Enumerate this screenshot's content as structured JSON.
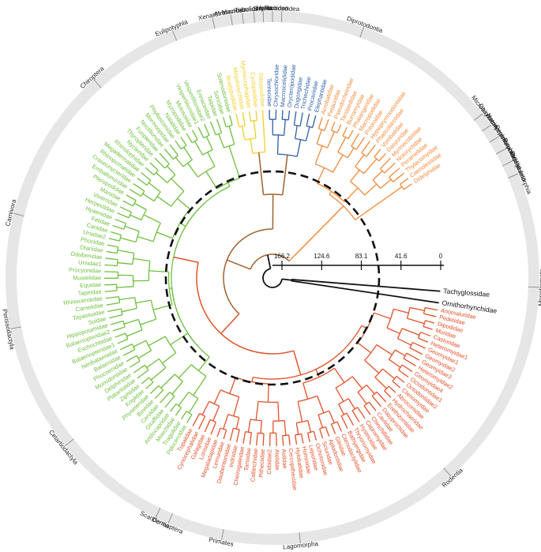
{
  "colors": {
    "ring": "#e6e6e6",
    "green": "#6fbf3f",
    "yellow": "#f2cf2b",
    "blue": "#2f5fa8",
    "orange": "#f08a3a",
    "red": "#e2522a",
    "brown": "#a0622d",
    "dark": "#111111"
  },
  "timescale": {
    "ticks": [
      "166.2",
      "124.6",
      "83.1",
      "41.6",
      "0"
    ]
  },
  "outgroup": [
    "Tachyglossidae",
    "Ornithorhynchidae"
  ],
  "orders": [
    {
      "name": "Monotremata",
      "angle": 2
    },
    {
      "name": "Rodentia",
      "angle": 48
    },
    {
      "name": "Lagomorpha",
      "angle": 84
    },
    {
      "name": "Primates",
      "angle": 101
    },
    {
      "name": "Dermoptera",
      "angle": 113
    },
    {
      "name": "Scandentia",
      "angle": 116
    },
    {
      "name": "Cetartiodactyla",
      "angle": 141
    },
    {
      "name": "Perissodactyla",
      "angle": 169
    },
    {
      "name": "Carnivora",
      "angle": 194
    },
    {
      "name": "Chiroptera",
      "angle": 228
    },
    {
      "name": "Eulipotyphla",
      "angle": 248
    },
    {
      "name": "Xenarthra",
      "angle": 257
    },
    {
      "name": "Afrosoricida",
      "angle": 261
    },
    {
      "name": "Macroscelidea",
      "angle": 263.5
    },
    {
      "name": "Tubulidentata",
      "angle": 266
    },
    {
      "name": "Sirenia",
      "angle": 268
    },
    {
      "name": "Hyracoidea",
      "angle": 270
    },
    {
      "name": "Proboscidea",
      "angle": 272
    },
    {
      "name": "Diprotodontia",
      "angle": 290
    },
    {
      "name": "Microbiotheria",
      "angle": 322
    },
    {
      "name": "Dasyuromorphia",
      "angle": 325
    },
    {
      "name": "Notoryctemorphia",
      "angle": 328
    },
    {
      "name": "Peramelemorphia",
      "angle": 331
    },
    {
      "name": "Paucituberculata",
      "angle": 334
    },
    {
      "name": "Didelphimorphia",
      "angle": 337
    }
  ],
  "clades": [
    {
      "color": "red",
      "leaves": [
        "Anomaluridae",
        "Pedetidae",
        "Dipodidae",
        "Muridae",
        "Castoridae",
        "Heteromyidae1",
        "Geomyidae1",
        "Geomyidae2",
        "Geomyidae3",
        "Heteromyidae2",
        "Geomyidae4",
        "Octodontidae1",
        "Octodontidae2",
        "Ctenomyidae",
        "Abrocomidae",
        "Hydrochaeridae",
        "Erethizontidae",
        "Dasyproctidae",
        "Caviidae",
        "Chinchillidae",
        "Capromyidae",
        "Hystricidae",
        "Thryonomyidae",
        "Bathyergidae",
        "Ctenodactylidae",
        "Gliridae",
        "Aplodontidae",
        "Sciuridae",
        "Ochotonidae",
        "Leporidae",
        "Hominidae",
        "Hylobatidae",
        "Cercopithecidae",
        "Aotidae",
        "Atelidae",
        "Cebidae2",
        "Pitheciidae",
        "Callitrichidae",
        "Tarsiidae",
        "Cheirogaleidae",
        "Indriidae",
        "Daubentoniidae",
        "Lemuridae",
        "Megaladapidae",
        "Lorisidae",
        "Galagidae",
        "Cynocephalidae",
        "Tupaiidae"
      ]
    },
    {
      "color": "green",
      "leaves": [
        "Ptilocercidae",
        "Tragulidae",
        "Moschidae",
        "Antilocapridae",
        "Giraffidae",
        "Cervidae",
        "Bovidae",
        "Physeteridae",
        "Kogiidae",
        "Ziphiidae",
        "Platanistidae",
        "Delphinidae",
        "Monodontidae",
        "Phocoenidae",
        "Balaenidae",
        "Neobalaenidae",
        "Balaenopteridae1",
        "Eschrichtiidae",
        "Balaenopteridae2",
        "Hippopotamidae",
        "Suidae",
        "Tayassuidae",
        "Camelidae",
        "Rhinocerotidae",
        "Tapiridae",
        "Equidae",
        "Mustelidae",
        "Procyonidae",
        "Ursidae1",
        "Odobenidae",
        "Otariidae",
        "Phocidae",
        "Ursidae2",
        "Canidae",
        "Felidae",
        "Hyaenidae",
        "Herpestidae",
        "Viverridae",
        "Manidae",
        "Pteropodidae",
        "Emballonuridae",
        "Craseonycteridae",
        "Rhinopomatidae",
        "Megadermatidae",
        "Rhinolophidae",
        "Nycteridae",
        "Thyropteridae",
        "Furipteridae",
        "Noctilionidae",
        "Mormoopidae",
        "Phyllostomidae",
        "Natalidae",
        "Myzopodidae",
        "Molossidae",
        "Vespertilionidae1",
        "Vespertilionidae2",
        "Erinaceidae",
        "Talpidae",
        "Soricidae",
        "Solenodontidae"
      ]
    },
    {
      "color": "yellow",
      "leaves": [
        "Bradypodidae",
        "Megalonychidae",
        "Myrmecophagidae",
        "Cyclopedidae",
        "Dasypodidae"
      ]
    },
    {
      "color": "blue",
      "leaves": [
        "Tenrecidae",
        "Chrysochloridae",
        "Macroscelididae",
        "Orycteropodidae",
        "Dugongidae",
        "Trichechidae",
        "Procaviidae",
        "Elephantidae"
      ]
    },
    {
      "color": "orange",
      "leaves": [
        "Acrobatidae",
        "Petauridae",
        "Pseudocheiridae",
        "Tarsipedidae",
        "Burramyidae",
        "Phalangeridae",
        "Macropodidae",
        "Potoroidae",
        "Hypsiprymnodontidae",
        "Phascolarctidae",
        "Vombatidae",
        "Dasyuridae",
        "Myrmecobiidae",
        "Notoryctidae",
        "Peramelidae",
        "Thylacomyidae",
        "Caenolestidae",
        "Didelphidae"
      ]
    }
  ]
}
